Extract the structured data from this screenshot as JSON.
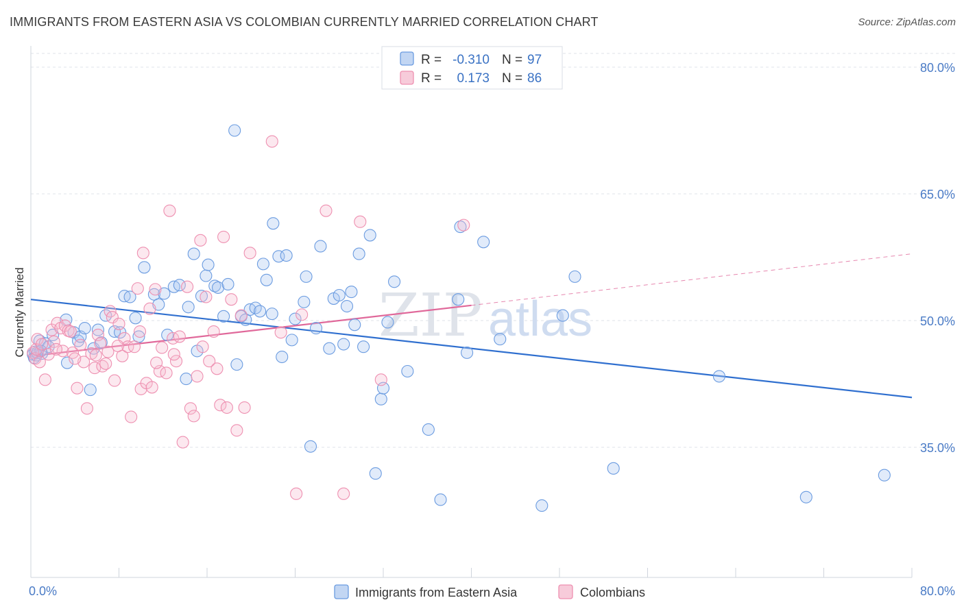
{
  "title": "IMMIGRANTS FROM EASTERN ASIA VS COLOMBIAN CURRENTLY MARRIED CORRELATION CHART",
  "source": "Source: ZipAtlas.com",
  "watermark": {
    "part1": "ZIP",
    "part2": "atlas"
  },
  "colors": {
    "blue": "#6a9be0",
    "blue_line": "#2f6fcf",
    "pink": "#ee8fb0",
    "pink_line": "#e0689a",
    "grid": "#dfe3ea",
    "axis_text": "#4a7bc6"
  },
  "stats": {
    "r_label": "R =",
    "n_label": "N =",
    "blue": {
      "r": "-0.310",
      "n": "97"
    },
    "pink": {
      "r": "0.173",
      "n": "86"
    }
  },
  "legend": [
    "Immigrants from Eastern Asia",
    "Colombians"
  ],
  "chart_data": {
    "type": "scatter",
    "title": "IMMIGRANTS FROM EASTERN ASIA VS COLOMBIAN CURRENTLY MARRIED CORRELATION CHART",
    "ylabel": "Currently Married",
    "xlabel": "",
    "xlim": [
      0,
      80
    ],
    "ylim": [
      20,
      82
    ],
    "x_tick_labels": [
      "0.0%",
      "80.0%"
    ],
    "y_ticks": [
      35,
      50,
      65,
      80
    ],
    "y_tick_labels": [
      "35.0%",
      "50.0%",
      "65.0%",
      "80.0%"
    ],
    "grid": true,
    "legend_position": "bottom",
    "series": [
      {
        "name": "Immigrants from Eastern Asia",
        "color": "#6a9be0",
        "trend": {
          "x": [
            0,
            80
          ],
          "y": [
            52.5,
            40.9
          ],
          "style": "solid"
        },
        "points": [
          [
            0.2,
            46.0
          ],
          [
            0.3,
            45.6
          ],
          [
            0.4,
            46.3
          ],
          [
            0.5,
            45.9
          ],
          [
            0.6,
            46.2
          ],
          [
            0.8,
            47.6
          ],
          [
            1.0,
            46.1
          ],
          [
            1.3,
            47.3
          ],
          [
            1.6,
            46.9
          ],
          [
            2.0,
            48.3
          ],
          [
            3.2,
            50.1
          ],
          [
            3.3,
            45.0
          ],
          [
            3.9,
            48.6
          ],
          [
            4.3,
            47.6
          ],
          [
            4.5,
            48.1
          ],
          [
            4.9,
            49.1
          ],
          [
            5.4,
            41.8
          ],
          [
            5.7,
            46.7
          ],
          [
            6.1,
            48.9
          ],
          [
            6.4,
            47.4
          ],
          [
            6.8,
            50.6
          ],
          [
            7.6,
            48.7
          ],
          [
            8.1,
            48.6
          ],
          [
            8.5,
            52.9
          ],
          [
            9.0,
            52.8
          ],
          [
            9.5,
            50.3
          ],
          [
            9.8,
            48.1
          ],
          [
            10.3,
            56.3
          ],
          [
            11.2,
            53.1
          ],
          [
            11.6,
            51.9
          ],
          [
            12.1,
            53.2
          ],
          [
            12.4,
            48.3
          ],
          [
            13.0,
            54.0
          ],
          [
            13.5,
            54.2
          ],
          [
            14.1,
            43.1
          ],
          [
            14.3,
            51.6
          ],
          [
            14.8,
            57.9
          ],
          [
            15.1,
            46.4
          ],
          [
            15.5,
            52.9
          ],
          [
            15.9,
            55.3
          ],
          [
            16.1,
            56.6
          ],
          [
            16.7,
            54.1
          ],
          [
            17.0,
            53.9
          ],
          [
            17.5,
            50.5
          ],
          [
            17.9,
            54.3
          ],
          [
            18.5,
            72.5
          ],
          [
            18.7,
            44.8
          ],
          [
            19.1,
            50.5
          ],
          [
            19.5,
            50.1
          ],
          [
            19.9,
            51.3
          ],
          [
            20.4,
            51.5
          ],
          [
            20.8,
            51.1
          ],
          [
            21.1,
            56.7
          ],
          [
            21.4,
            54.8
          ],
          [
            21.9,
            50.8
          ],
          [
            22.0,
            61.5
          ],
          [
            22.5,
            57.6
          ],
          [
            22.8,
            45.7
          ],
          [
            23.2,
            57.7
          ],
          [
            23.7,
            47.7
          ],
          [
            24.0,
            50.2
          ],
          [
            24.8,
            52.2
          ],
          [
            25.0,
            55.2
          ],
          [
            25.4,
            35.1
          ],
          [
            25.9,
            49.1
          ],
          [
            26.3,
            58.8
          ],
          [
            27.1,
            46.7
          ],
          [
            27.5,
            52.6
          ],
          [
            28.0,
            53.0
          ],
          [
            28.4,
            47.2
          ],
          [
            28.7,
            51.7
          ],
          [
            29.1,
            53.4
          ],
          [
            29.4,
            49.5
          ],
          [
            29.8,
            57.9
          ],
          [
            30.2,
            46.9
          ],
          [
            30.8,
            60.1
          ],
          [
            31.3,
            31.9
          ],
          [
            31.8,
            40.7
          ],
          [
            32.0,
            42.0
          ],
          [
            32.4,
            49.8
          ],
          [
            33.0,
            54.6
          ],
          [
            34.2,
            44.0
          ],
          [
            36.1,
            37.1
          ],
          [
            37.2,
            28.8
          ],
          [
            38.8,
            52.5
          ],
          [
            39.0,
            61.1
          ],
          [
            39.6,
            46.2
          ],
          [
            41.1,
            59.3
          ],
          [
            42.6,
            47.8
          ],
          [
            46.4,
            28.1
          ],
          [
            48.3,
            50.6
          ],
          [
            49.4,
            55.2
          ],
          [
            52.9,
            32.5
          ],
          [
            62.5,
            43.4
          ],
          [
            70.4,
            29.1
          ],
          [
            77.5,
            31.7
          ],
          [
            0.9,
            46.4
          ]
        ]
      },
      {
        "name": "Colombians",
        "color": "#ee8fb0",
        "trend": {
          "x": [
            0,
            40
          ],
          "y": [
            45.8,
            51.8
          ],
          "style": "solid",
          "extended": {
            "x": [
              40,
              80
            ],
            "y": [
              51.8,
              57.9
            ],
            "style": "dashed"
          }
        },
        "points": [
          [
            0.2,
            46.2
          ],
          [
            0.4,
            45.5
          ],
          [
            0.5,
            46.6
          ],
          [
            0.6,
            47.8
          ],
          [
            0.8,
            45.1
          ],
          [
            1.0,
            47.2
          ],
          [
            1.3,
            43.0
          ],
          [
            1.6,
            46.0
          ],
          [
            1.9,
            48.9
          ],
          [
            2.1,
            47.5
          ],
          [
            2.4,
            49.7
          ],
          [
            2.7,
            49.1
          ],
          [
            2.9,
            46.4
          ],
          [
            3.1,
            49.4
          ],
          [
            3.4,
            48.8
          ],
          [
            3.8,
            46.2
          ],
          [
            4.2,
            42.0
          ],
          [
            4.5,
            47.1
          ],
          [
            4.8,
            45.1
          ],
          [
            5.1,
            39.6
          ],
          [
            5.5,
            46.1
          ],
          [
            5.8,
            44.4
          ],
          [
            6.1,
            48.3
          ],
          [
            6.5,
            44.6
          ],
          [
            6.8,
            44.9
          ],
          [
            7.0,
            46.3
          ],
          [
            7.2,
            51.1
          ],
          [
            7.4,
            50.4
          ],
          [
            7.6,
            42.9
          ],
          [
            8.0,
            49.6
          ],
          [
            8.3,
            45.8
          ],
          [
            8.5,
            47.9
          ],
          [
            8.8,
            46.9
          ],
          [
            9.1,
            38.6
          ],
          [
            9.4,
            46.9
          ],
          [
            9.7,
            53.8
          ],
          [
            10.0,
            41.9
          ],
          [
            10.2,
            58.0
          ],
          [
            10.5,
            42.6
          ],
          [
            10.8,
            51.4
          ],
          [
            11.0,
            42.1
          ],
          [
            11.3,
            53.7
          ],
          [
            11.7,
            44.0
          ],
          [
            11.9,
            46.8
          ],
          [
            12.3,
            43.8
          ],
          [
            12.6,
            63.0
          ],
          [
            12.9,
            47.9
          ],
          [
            13.2,
            45.2
          ],
          [
            13.5,
            48.1
          ],
          [
            13.8,
            35.6
          ],
          [
            14.2,
            54.0
          ],
          [
            14.5,
            39.6
          ],
          [
            14.8,
            38.7
          ],
          [
            15.1,
            43.4
          ],
          [
            15.4,
            59.5
          ],
          [
            15.6,
            46.9
          ],
          [
            15.9,
            52.8
          ],
          [
            16.2,
            45.2
          ],
          [
            16.6,
            48.7
          ],
          [
            16.9,
            44.3
          ],
          [
            17.2,
            40.0
          ],
          [
            17.5,
            59.9
          ],
          [
            17.8,
            39.7
          ],
          [
            18.2,
            52.5
          ],
          [
            18.7,
            37.0
          ],
          [
            19.1,
            50.6
          ],
          [
            19.4,
            39.7
          ],
          [
            19.9,
            58.0
          ],
          [
            21.9,
            71.2
          ],
          [
            22.7,
            48.6
          ],
          [
            24.1,
            29.5
          ],
          [
            24.6,
            50.7
          ],
          [
            26.8,
            63.0
          ],
          [
            28.4,
            29.5
          ],
          [
            29.9,
            61.7
          ],
          [
            31.8,
            43.0
          ],
          [
            39.3,
            61.3
          ],
          [
            6.3,
            47.3
          ],
          [
            9.9,
            48.7
          ],
          [
            7.9,
            47.0
          ],
          [
            3.6,
            48.7
          ],
          [
            2.3,
            46.6
          ],
          [
            5.9,
            45.9
          ],
          [
            11.4,
            45.0
          ],
          [
            13.0,
            46.0
          ],
          [
            4.0,
            45.5
          ]
        ]
      }
    ]
  }
}
